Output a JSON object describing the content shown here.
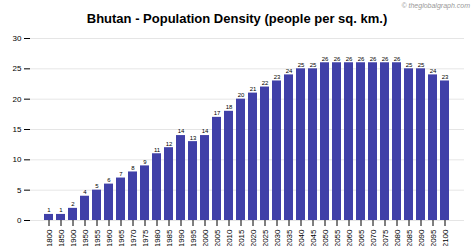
{
  "chart_data": {
    "type": "bar",
    "title": "Bhutan - Population Density (people per sq. km.)",
    "categories": [
      "1800",
      "1850",
      "1900",
      "1950",
      "1955",
      "1960",
      "1965",
      "1970",
      "1975",
      "1980",
      "1985",
      "1990",
      "1995",
      "2000",
      "2005",
      "2010",
      "2015",
      "2020",
      "2025",
      "2030",
      "2035",
      "2040",
      "2045",
      "2050",
      "2055",
      "2060",
      "2065",
      "2070",
      "2075",
      "2080",
      "2085",
      "2090",
      "2095",
      "2100"
    ],
    "values": [
      1,
      1,
      2,
      4,
      5,
      6,
      7,
      8,
      9,
      11,
      12,
      14,
      13,
      14,
      17,
      18,
      20,
      21,
      22,
      23,
      24,
      25,
      25,
      26,
      26,
      26,
      26,
      26,
      26,
      26,
      25,
      25,
      24,
      23
    ],
    "color": "#4040a8",
    "ylim": [
      0,
      30
    ],
    "yticks": [
      0,
      5,
      10,
      15,
      20,
      25,
      30
    ],
    "grid": true,
    "data_labels": true,
    "annotations": [
      "© theglobalgraph.com"
    ]
  }
}
